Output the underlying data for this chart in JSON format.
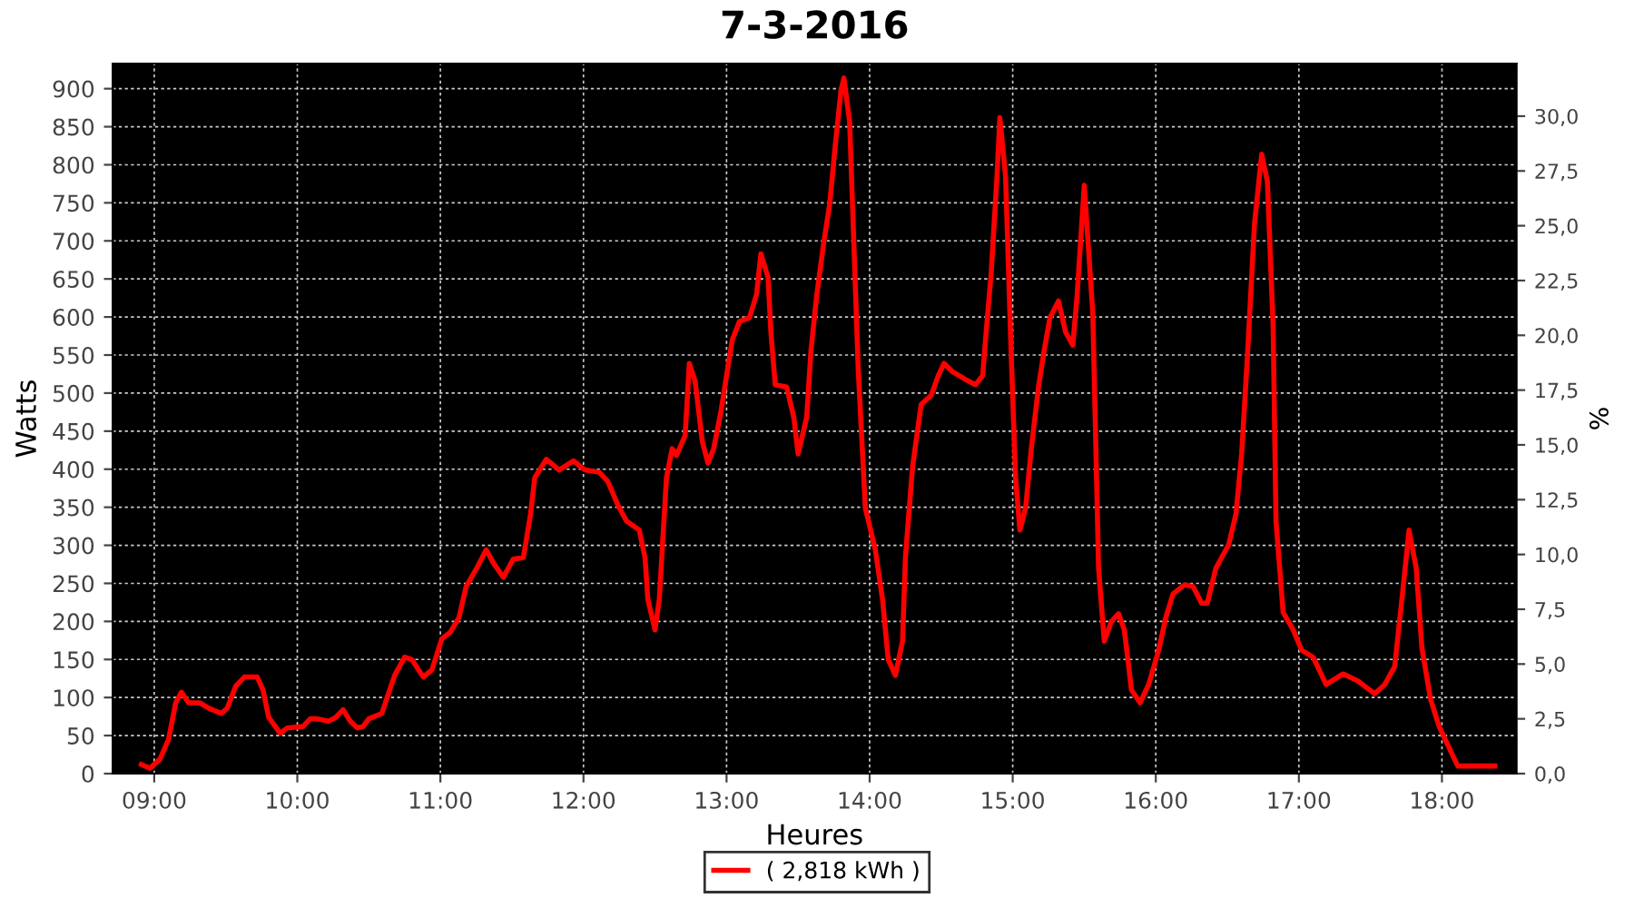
{
  "chart_data": {
    "type": "line",
    "title": "7-3-2016",
    "xlabel": "Heures",
    "ylabel": "Watts",
    "y2label": "%",
    "xlim": [
      8.71,
      18.52
    ],
    "ylim": [
      0,
      933
    ],
    "y2lim": [
      0,
      32.4
    ],
    "xticks": [
      {
        "value": 9,
        "label": "09:00"
      },
      {
        "value": 10,
        "label": "10:00"
      },
      {
        "value": 11,
        "label": "11:00"
      },
      {
        "value": 12,
        "label": "12:00"
      },
      {
        "value": 13,
        "label": "13:00"
      },
      {
        "value": 14,
        "label": "14:00"
      },
      {
        "value": 15,
        "label": "15:00"
      },
      {
        "value": 16,
        "label": "16:00"
      },
      {
        "value": 17,
        "label": "17:00"
      },
      {
        "value": 18,
        "label": "18:00"
      }
    ],
    "yticks": [
      0,
      50,
      100,
      150,
      200,
      250,
      300,
      350,
      400,
      450,
      500,
      550,
      600,
      650,
      700,
      750,
      800,
      850,
      900
    ],
    "y2ticks": [
      {
        "value": 0,
        "label": "0,0"
      },
      {
        "value": 2.5,
        "label": "2,5"
      },
      {
        "value": 5,
        "label": "5,0"
      },
      {
        "value": 7.5,
        "label": "7,5"
      },
      {
        "value": 10,
        "label": "10,0"
      },
      {
        "value": 12.5,
        "label": "12,5"
      },
      {
        "value": 15,
        "label": "15,0"
      },
      {
        "value": 17.5,
        "label": "17,5"
      },
      {
        "value": 20,
        "label": "20,0"
      },
      {
        "value": 22.5,
        "label": "22,5"
      },
      {
        "value": 25,
        "label": "25,0"
      },
      {
        "value": 27.5,
        "label": "27,5"
      },
      {
        "value": 30,
        "label": "30,0"
      }
    ],
    "grid": true,
    "legend": "bottom",
    "marker": "none",
    "line_style": "solid",
    "series": [
      {
        "name": "( 2,818 kWh )",
        "color": "#ff0000",
        "x": [
          8.91,
          8.97,
          9.04,
          9.1,
          9.15,
          9.19,
          9.24,
          9.32,
          9.38,
          9.47,
          9.51,
          9.57,
          9.63,
          9.72,
          9.76,
          9.8,
          9.88,
          9.93,
          10.04,
          10.09,
          10.14,
          10.22,
          10.27,
          10.32,
          10.37,
          10.42,
          10.46,
          10.5,
          10.59,
          10.68,
          10.75,
          10.8,
          10.88,
          10.94,
          11.01,
          11.07,
          11.13,
          11.18,
          11.26,
          11.32,
          11.37,
          11.44,
          11.51,
          11.58,
          11.63,
          11.66,
          11.74,
          11.83,
          11.93,
          12.01,
          12.11,
          12.17,
          12.24,
          12.3,
          12.39,
          12.43,
          12.45,
          12.5,
          12.53,
          12.58,
          12.62,
          12.65,
          12.71,
          12.74,
          12.78,
          12.83,
          12.87,
          12.91,
          12.96,
          13.0,
          13.04,
          13.09,
          13.16,
          13.21,
          13.24,
          13.29,
          13.31,
          13.34,
          13.42,
          13.47,
          13.5,
          13.56,
          13.59,
          13.63,
          13.68,
          13.72,
          13.76,
          13.8,
          13.82,
          13.86,
          13.92,
          13.97,
          14.04,
          14.09,
          14.13,
          14.18,
          14.23,
          14.25,
          14.3,
          14.36,
          14.43,
          14.48,
          14.52,
          14.58,
          14.67,
          14.74,
          14.79,
          14.81,
          14.85,
          14.89,
          14.91,
          14.95,
          14.99,
          15.02,
          15.05,
          15.09,
          15.13,
          15.18,
          15.22,
          15.26,
          15.32,
          15.37,
          15.42,
          15.45,
          15.5,
          15.56,
          15.6,
          15.64,
          15.69,
          15.74,
          15.78,
          15.83,
          15.89,
          15.95,
          16.02,
          16.07,
          16.12,
          16.2,
          16.26,
          16.32,
          16.36,
          16.42,
          16.51,
          16.56,
          16.6,
          16.64,
          16.69,
          16.74,
          16.78,
          16.82,
          16.84,
          16.89,
          16.96,
          17.02,
          17.1,
          17.19,
          17.31,
          17.41,
          17.53,
          17.6,
          17.67,
          17.72,
          17.77,
          17.82,
          17.86,
          17.92,
          17.98,
          18.04,
          18.11,
          18.37
        ],
        "values": [
          12,
          7,
          19,
          45,
          93,
          107,
          93,
          93,
          86,
          79,
          86,
          115,
          127,
          127,
          110,
          74,
          53,
          60,
          62,
          72,
          72,
          69,
          74,
          84,
          69,
          60,
          62,
          72,
          79,
          129,
          153,
          150,
          127,
          136,
          177,
          186,
          205,
          246,
          272,
          294,
          277,
          258,
          282,
          284,
          341,
          389,
          413,
          399,
          411,
          399,
          396,
          384,
          353,
          332,
          320,
          284,
          229,
          189,
          229,
          389,
          427,
          418,
          444,
          539,
          516,
          437,
          408,
          427,
          475,
          523,
          570,
          594,
          599,
          630,
          683,
          652,
          580,
          511,
          508,
          468,
          420,
          468,
          556,
          628,
          699,
          747,
          826,
          898,
          914,
          857,
          532,
          349,
          294,
          229,
          150,
          129,
          174,
          284,
          403,
          485,
          497,
          523,
          539,
          528,
          518,
          511,
          523,
          570,
          659,
          785,
          862,
          785,
          547,
          389,
          320,
          349,
          427,
          508,
          556,
          599,
          621,
          580,
          563,
          628,
          773,
          604,
          270,
          174,
          200,
          210,
          189,
          110,
          93,
          117,
          162,
          205,
          236,
          248,
          246,
          224,
          224,
          270,
          301,
          341,
          420,
          547,
          723,
          814,
          778,
          587,
          332,
          212,
          189,
          162,
          153,
          117,
          131,
          122,
          105,
          117,
          141,
          229,
          320,
          270,
          165,
          98,
          62,
          38,
          10,
          10
        ]
      }
    ]
  }
}
